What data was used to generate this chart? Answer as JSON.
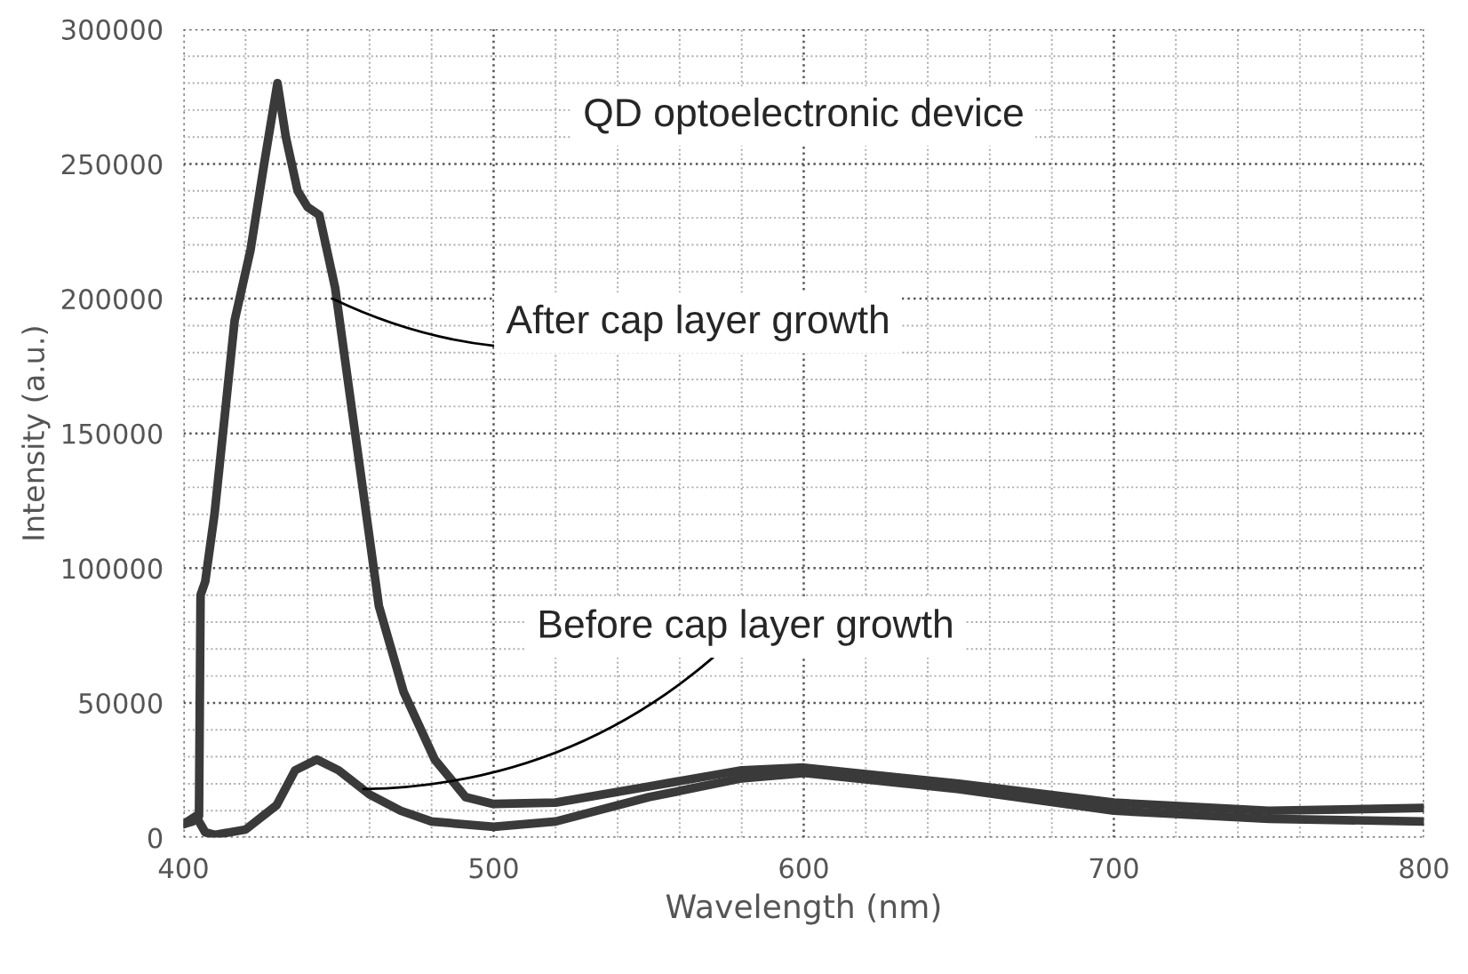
{
  "chart_data": {
    "type": "line",
    "title": "QD optoelectronic device",
    "xlabel": "Wavelength (nm)",
    "ylabel": "Intensity (a.u.)",
    "xlim": [
      400,
      800
    ],
    "xticks": [
      400,
      500,
      600,
      700,
      800
    ],
    "ylim": [
      0,
      300000
    ],
    "yticks": [
      0,
      50000,
      100000,
      150000,
      200000,
      250000,
      300000
    ],
    "grid": true,
    "line_style": "solid",
    "marker": "none",
    "series": [
      {
        "color": "#3a3a3a",
        "x": [
          400,
          403,
          405,
          405.5,
          407,
          410,
          416.5,
          421.6,
          426,
          430.3,
          433,
          436.8,
          440,
          443.8,
          448.9,
          455,
          463,
          471,
          481,
          491,
          500,
          520,
          550,
          580,
          600,
          650,
          700,
          750,
          800
        ],
        "values": [
          5000,
          6000,
          8000,
          90000,
          95000,
          120000,
          192000,
          218000,
          250000,
          280000,
          260000,
          240000,
          234000,
          231000,
          204000,
          153000,
          86000,
          54000,
          29000,
          15000,
          12500,
          13000,
          19000,
          25000,
          26000,
          20000,
          13000,
          10000,
          11000
        ]
      },
      {
        "color": "#3a3a3a",
        "x": [
          400,
          404,
          407,
          410,
          420,
          430,
          436,
          443,
          450,
          460,
          470,
          480,
          500,
          520,
          550,
          580,
          600,
          650,
          700,
          750,
          800
        ],
        "values": [
          5000,
          8000,
          2000,
          1000,
          3000,
          12000,
          25000,
          29000,
          25000,
          16000,
          10000,
          6000,
          4000,
          6000,
          15000,
          22000,
          24000,
          18000,
          10000,
          7000,
          6000
        ]
      }
    ],
    "annotations": [
      {
        "text": "After cap layer growth",
        "x": 448,
        "y": 200000
      },
      {
        "text": "Before cap layer growth",
        "x": 458,
        "y": 18000
      }
    ]
  }
}
